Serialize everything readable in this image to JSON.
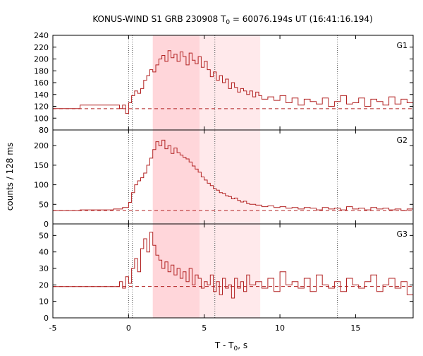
{
  "chart_data": {
    "type": "line",
    "title": "KONUS-WIND S1 GRB 230908 T",
    "title_sub": "0",
    "title_rest": " = 60076.194s UT (16:41:16.194)",
    "xlabel": "T - T",
    "xlabel_sub": "0",
    "xlabel_rest": ", s",
    "ylabel": "counts / 128 ms",
    "x_range": [
      -5.0,
      18.8
    ],
    "x_ticks": [
      -5,
      0,
      5,
      10,
      15
    ],
    "x_tick_labels": [
      "-5",
      "0",
      "5",
      "10",
      "15"
    ],
    "grid": false,
    "shaded_intervals": [
      {
        "from": 1.6,
        "to": 4.7,
        "color": "#ffd6da"
      },
      {
        "from": 4.7,
        "to": 8.7,
        "color": "#ffe9eb"
      }
    ],
    "vertical_markers": [
      0.0,
      0.25,
      5.7,
      13.8
    ],
    "colors": {
      "series": "#b22222",
      "background_line": "#b22222",
      "marker": "#555555"
    },
    "panels": [
      {
        "name": "G1",
        "ylim": [
          80,
          240
        ],
        "y_ticks": [
          80,
          100,
          120,
          140,
          160,
          180,
          200,
          220,
          240
        ],
        "background_level": 116,
        "series": {
          "x": [
            -5.0,
            -3.2,
            -0.6,
            -0.4,
            -0.2,
            0.0,
            0.2,
            0.4,
            0.6,
            0.8,
            1.0,
            1.2,
            1.4,
            1.6,
            1.8,
            2.0,
            2.2,
            2.4,
            2.6,
            2.8,
            3.0,
            3.2,
            3.4,
            3.6,
            3.8,
            4.0,
            4.2,
            4.4,
            4.6,
            4.8,
            5.0,
            5.2,
            5.4,
            5.6,
            5.8,
            6.0,
            6.2,
            6.4,
            6.6,
            6.8,
            7.0,
            7.2,
            7.4,
            7.6,
            7.8,
            8.0,
            8.2,
            8.4,
            8.6,
            8.8,
            9.2,
            9.6,
            10.0,
            10.4,
            10.8,
            11.2,
            11.6,
            12.0,
            12.4,
            12.8,
            13.2,
            13.6,
            14.0,
            14.4,
            14.8,
            15.2,
            15.6,
            16.0,
            16.4,
            16.8,
            17.2,
            17.6,
            18.0,
            18.4,
            18.8
          ],
          "values": [
            116,
            122,
            116,
            122,
            108,
            126,
            138,
            146,
            142,
            150,
            164,
            172,
            182,
            178,
            190,
            200,
            206,
            196,
            214,
            202,
            208,
            196,
            212,
            204,
            190,
            210,
            198,
            192,
            204,
            186,
            196,
            182,
            170,
            178,
            164,
            172,
            160,
            166,
            150,
            160,
            152,
            144,
            150,
            146,
            140,
            146,
            136,
            144,
            138,
            132,
            136,
            130,
            138,
            126,
            134,
            122,
            132,
            128,
            124,
            134,
            120,
            128,
            138,
            124,
            126,
            134,
            120,
            132,
            128,
            122,
            136,
            124,
            132,
            126,
            130
          ]
        }
      },
      {
        "name": "G2",
        "ylim": [
          0,
          240
        ],
        "y_ticks": [
          0,
          50,
          100,
          150,
          200
        ],
        "background_level": 34,
        "series": {
          "x": [
            -5.0,
            -3.2,
            -1.0,
            -0.4,
            0.0,
            0.2,
            0.4,
            0.6,
            0.8,
            1.0,
            1.2,
            1.4,
            1.6,
            1.8,
            2.0,
            2.2,
            2.4,
            2.6,
            2.8,
            3.0,
            3.2,
            3.4,
            3.6,
            3.8,
            4.0,
            4.2,
            4.4,
            4.6,
            4.8,
            5.0,
            5.2,
            5.4,
            5.6,
            5.8,
            6.0,
            6.2,
            6.4,
            6.6,
            6.8,
            7.0,
            7.2,
            7.4,
            7.6,
            7.8,
            8.0,
            8.4,
            8.8,
            9.2,
            9.6,
            10.0,
            10.4,
            10.8,
            11.2,
            11.6,
            12.0,
            12.4,
            12.8,
            13.2,
            13.6,
            14.0,
            14.4,
            14.8,
            15.2,
            15.6,
            16.0,
            16.4,
            16.8,
            17.2,
            17.6,
            18.0,
            18.4,
            18.8
          ],
          "values": [
            34,
            36,
            38,
            42,
            55,
            80,
            100,
            110,
            118,
            130,
            150,
            168,
            190,
            210,
            200,
            214,
            192,
            200,
            180,
            194,
            182,
            176,
            170,
            166,
            158,
            148,
            140,
            132,
            120,
            112,
            104,
            98,
            90,
            86,
            80,
            78,
            72,
            70,
            64,
            66,
            60,
            56,
            58,
            52,
            50,
            48,
            44,
            46,
            42,
            44,
            40,
            42,
            38,
            42,
            40,
            36,
            42,
            38,
            40,
            36,
            44,
            38,
            40,
            36,
            42,
            38,
            40,
            36,
            38,
            34,
            38,
            36
          ]
        }
      },
      {
        "name": "G3",
        "ylim": [
          0,
          57
        ],
        "y_ticks": [
          0,
          10,
          20,
          30,
          40,
          50
        ],
        "background_level": 19,
        "series": {
          "x": [
            -5.0,
            -0.6,
            -0.4,
            -0.2,
            0.0,
            0.2,
            0.4,
            0.6,
            0.8,
            1.0,
            1.2,
            1.4,
            1.6,
            1.8,
            2.0,
            2.2,
            2.4,
            2.6,
            2.8,
            3.0,
            3.2,
            3.4,
            3.6,
            3.8,
            4.0,
            4.2,
            4.4,
            4.6,
            4.8,
            5.0,
            5.2,
            5.4,
            5.6,
            5.8,
            6.0,
            6.2,
            6.4,
            6.6,
            6.8,
            7.0,
            7.2,
            7.4,
            7.6,
            7.8,
            8.0,
            8.4,
            8.8,
            9.2,
            9.6,
            10.0,
            10.4,
            10.8,
            11.2,
            11.6,
            12.0,
            12.4,
            12.8,
            13.2,
            13.6,
            14.0,
            14.4,
            14.8,
            15.2,
            15.6,
            16.0,
            16.4,
            16.8,
            17.2,
            17.6,
            18.0,
            18.4,
            18.8
          ],
          "values": [
            19,
            22,
            18,
            25,
            21,
            30,
            36,
            28,
            42,
            48,
            40,
            52,
            44,
            38,
            35,
            30,
            34,
            28,
            32,
            26,
            30,
            24,
            28,
            22,
            30,
            20,
            26,
            24,
            18,
            22,
            20,
            26,
            16,
            22,
            14,
            24,
            18,
            20,
            12,
            24,
            18,
            22,
            16,
            26,
            20,
            22,
            18,
            24,
            16,
            28,
            20,
            22,
            18,
            24,
            16,
            26,
            20,
            18,
            22,
            16,
            24,
            20,
            18,
            22,
            26,
            16,
            20,
            24,
            18,
            22,
            14,
            20
          ]
        }
      }
    ]
  }
}
